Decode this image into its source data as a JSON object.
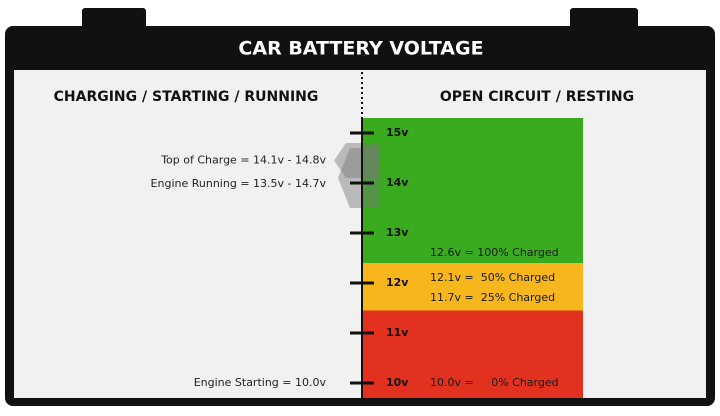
{
  "header": {
    "title": "CAR BATTERY VOLTAGE"
  },
  "scale": {
    "lim": [
      9.7,
      15.3
    ],
    "ticks": [
      {
        "value": 10,
        "label": "10v"
      },
      {
        "value": 11,
        "label": "11v"
      },
      {
        "value": 12,
        "label": "12v"
      },
      {
        "value": 13,
        "label": "13v"
      },
      {
        "value": 14,
        "label": "14v"
      },
      {
        "value": 15,
        "label": "15v"
      }
    ]
  },
  "left": {
    "title": "CHARGING / STARTING / RUNNING",
    "ranges": [
      {
        "label": "Top of Charge = 14.1v - 14.8v",
        "from": 14.1,
        "to": 14.8
      },
      {
        "label": "Engine Running = 13.5v - 14.7v",
        "from": 13.5,
        "to": 14.7
      }
    ],
    "points": [
      {
        "label": "Engine Starting = 10.0v",
        "value": 10.0
      }
    ]
  },
  "right": {
    "title": "OPEN CIRCUIT / RESTING",
    "zones": [
      {
        "from": 12.4,
        "to": 15.3,
        "color": "#3aab1e"
      },
      {
        "from": 11.45,
        "to": 12.4,
        "color": "#f7b61c"
      },
      {
        "from": 9.7,
        "to": 11.45,
        "color": "#e2311f"
      }
    ],
    "levels": [
      {
        "label": "12.6v = 100% Charged",
        "value": 12.6
      },
      {
        "label": "12.1v =  50% Charged",
        "value": 12.1
      },
      {
        "label": "11.7v =  25% Charged",
        "value": 11.7
      },
      {
        "label": "10.0v =     0% Charged",
        "value": 10.0
      }
    ]
  }
}
